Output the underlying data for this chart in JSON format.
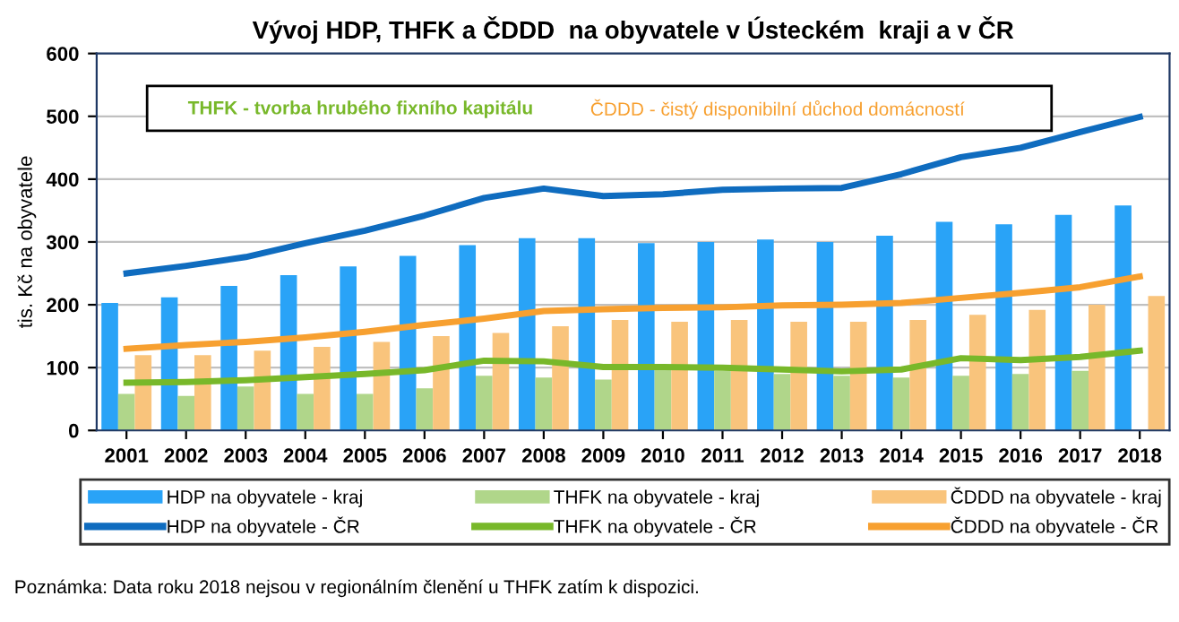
{
  "chart_data": {
    "type": "bar",
    "title": "Vývoj HDP, THFK a ČDDD  na obyvatele v Ústeckém  kraji a v ČR",
    "ylabel": "tis. Kč na obyvatele",
    "categories": [
      "2001",
      "2002",
      "2003",
      "2004",
      "2005",
      "2006",
      "2007",
      "2008",
      "2009",
      "2010",
      "2011",
      "2012",
      "2013",
      "2014",
      "2015",
      "2016",
      "2017",
      "2018"
    ],
    "series": [
      {
        "name": "HDP na obyvatele - kraj",
        "color": "#29a3f7",
        "values": [
          203,
          212,
          230,
          247,
          261,
          278,
          295,
          306,
          306,
          298,
          300,
          304,
          300,
          310,
          332,
          328,
          343,
          358
        ]
      },
      {
        "name": "THFK na obyvatele - kraj",
        "color": "#b0d68a",
        "values": [
          58,
          55,
          70,
          58,
          58,
          67,
          87,
          84,
          81,
          103,
          95,
          90,
          87,
          84,
          87,
          90,
          95,
          null
        ]
      },
      {
        "name": "ČDDD na obyvatele - kraj",
        "color": "#f9c47c",
        "values": [
          120,
          120,
          127,
          133,
          141,
          150,
          155,
          166,
          176,
          173,
          176,
          173,
          173,
          176,
          184,
          192,
          200,
          214
        ]
      },
      {
        "name": "HDP na obyvatele - ČR",
        "type": "line",
        "color": "#0f6cbf",
        "values": [
          250,
          262,
          276,
          298,
          318,
          342,
          370,
          385,
          373,
          376,
          383,
          385,
          386,
          408,
          435,
          450,
          475,
          499
        ]
      },
      {
        "name": "THFK na obyvatele - ČR",
        "type": "line",
        "color": "#78b82a",
        "values": [
          76,
          77,
          80,
          85,
          90,
          96,
          111,
          110,
          101,
          101,
          100,
          97,
          94,
          97,
          115,
          112,
          117,
          127
        ]
      },
      {
        "name": "ČDDD na obyvatele - ČR",
        "type": "line",
        "color": "#f7a030",
        "values": [
          130,
          136,
          141,
          148,
          157,
          168,
          178,
          190,
          193,
          195,
          196,
          199,
          200,
          203,
          211,
          219,
          228,
          245
        ]
      }
    ],
    "ylim": [
      0,
      600
    ],
    "yticks": [
      0,
      100,
      200,
      300,
      400,
      500,
      600
    ],
    "grid": "y",
    "legend": "bottom",
    "marker": "none",
    "line_style": "solid",
    "annotations": [
      "THFK - tvorba hrubého fixního kapitálu",
      "ČDDD - čistý disponibilní důchod domácností",
      "Poznámka: Data roku 2018 nejsou v regionálním členění u THFK zatím k dispozici."
    ]
  }
}
